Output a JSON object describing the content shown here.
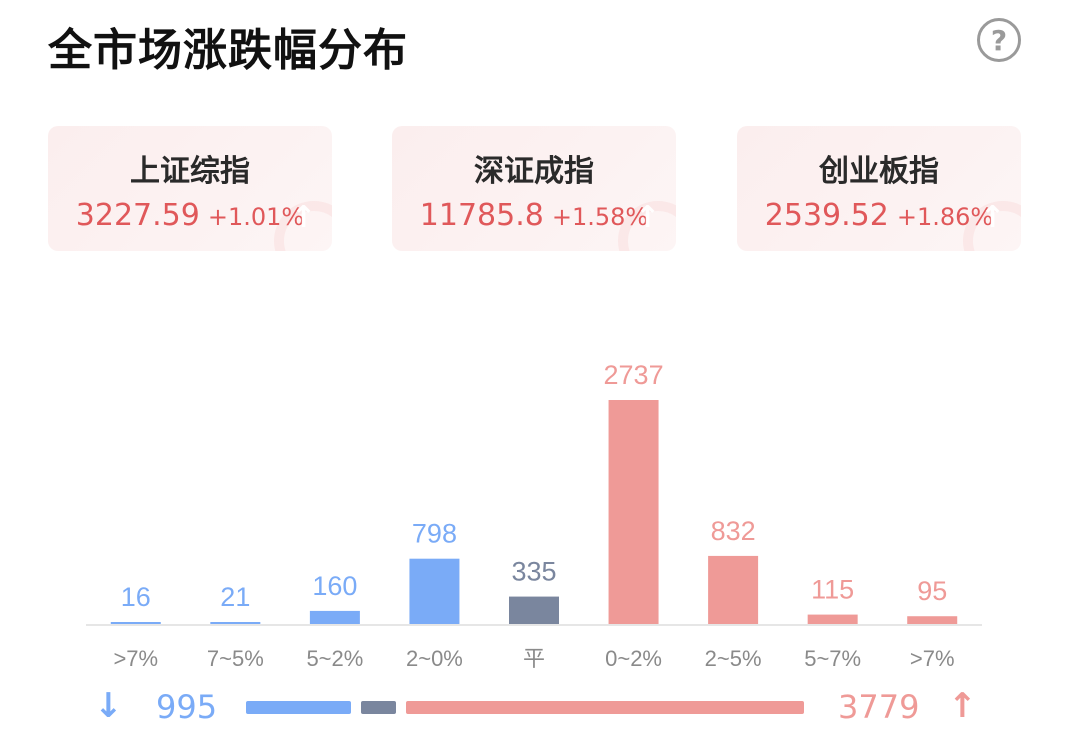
{
  "header": {
    "title": "全市场涨跌幅分布",
    "help_icon": "?"
  },
  "indices": [
    {
      "name": "上证综指",
      "value": "3227.59",
      "change": "+1.01%"
    },
    {
      "name": "深证成指",
      "value": "11785.8",
      "change": "+1.58%"
    },
    {
      "name": "创业板指",
      "value": "2539.52",
      "change": "+1.86%"
    }
  ],
  "colors": {
    "down": "#7aabf7",
    "flat": "#7a869e",
    "up": "#ef9a97",
    "up_text": "#e0585a",
    "axis_text": "#8a8a8a",
    "axis_line": "#e6e6e6"
  },
  "chart_data": {
    "type": "bar",
    "categories": [
      ">7%",
      "7~5%",
      "5~2%",
      "2~0%",
      "平",
      "0~2%",
      "2~5%",
      "5~7%",
      ">7%"
    ],
    "values": [
      16,
      21,
      160,
      798,
      335,
      2737,
      832,
      115,
      95
    ],
    "groups": [
      "down",
      "down",
      "down",
      "down",
      "flat",
      "up",
      "up",
      "up",
      "up"
    ],
    "ylim": [
      0,
      2737
    ]
  },
  "summary": {
    "down_icon": "↓",
    "down_count": "995",
    "up_count": "3779",
    "up_icon": "↑",
    "flat_count": 335
  }
}
